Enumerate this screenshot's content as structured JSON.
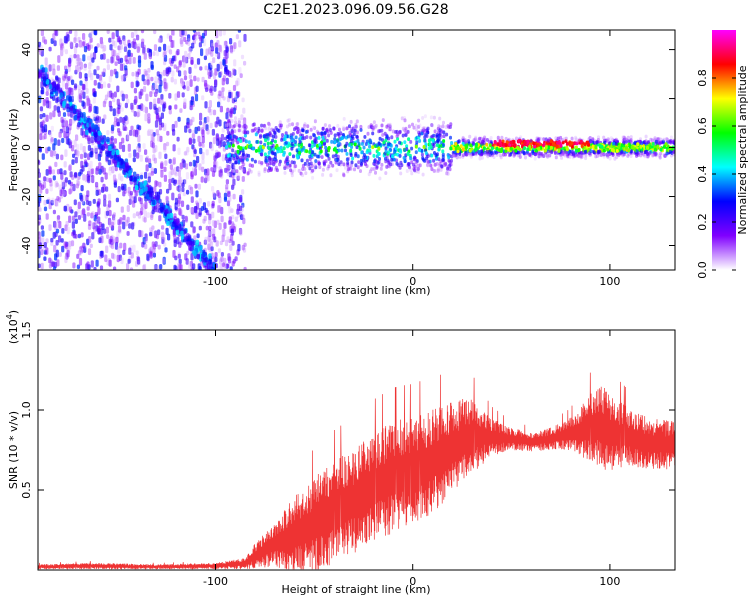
{
  "chart_data": [
    {
      "type": "heatmap",
      "title": "C2E1.2023.096.09.56.G28",
      "xlabel": "Height of straight line (km)",
      "ylabel": "Frequency (Hz)",
      "xlim": [
        -190,
        133
      ],
      "ylim": [
        -50,
        48
      ],
      "x_ticks": [
        -100,
        0,
        100
      ],
      "y_ticks": [
        -40,
        -20,
        0,
        20,
        40
      ],
      "colorbar": {
        "label": "Normalized spectral amplitude",
        "range": [
          0,
          1
        ],
        "ticks": [
          0.0,
          0.2,
          0.4,
          0.6,
          0.8
        ],
        "colormap": [
          "#ffffff",
          "#8000ff",
          "#0000ff",
          "#00ffff",
          "#00ff00",
          "#ffff00",
          "#ff0000",
          "#ff00ff"
        ]
      },
      "features": {
        "diagonal_track": {
          "start": [
            -190,
            32
          ],
          "end": [
            -100,
            -50
          ],
          "amplitude": 0.3
        },
        "central_band": {
          "x_range": [
            -95,
            133
          ],
          "frequency": 0,
          "peak_segment_x": [
            40,
            90
          ],
          "peak_amplitude": 0.95
        },
        "noise_region_x": [
          -190,
          -85
        ]
      }
    },
    {
      "type": "line",
      "xlabel": "Height of straight line (km)",
      "ylabel": "SNR (10 * v/v)",
      "y_multiplier": "(x10",
      "y_multiplier_exp": "4",
      "xlim": [
        -190,
        133
      ],
      "ylim": [
        0,
        15000
      ],
      "x_ticks": [
        -100,
        0,
        100
      ],
      "y_ticks": [
        5000,
        10000,
        15000
      ],
      "y_tick_labels": [
        "0.5",
        "1.0",
        "1.5"
      ],
      "color": "#ee3333",
      "series": [
        {
          "x": [
            -190,
            -160,
            -130,
            -100,
            -85,
            -80,
            -70,
            -60,
            -50,
            -40,
            -30,
            -20,
            -10,
            0,
            10,
            20,
            30,
            40,
            50,
            60,
            70,
            80,
            90,
            95,
            100,
            110,
            120,
            133
          ],
          "mean": [
            200,
            250,
            200,
            250,
            400,
            900,
            1600,
            2200,
            2800,
            3600,
            4300,
            5200,
            5800,
            6200,
            6800,
            7600,
            8400,
            8300,
            8200,
            8000,
            8200,
            8500,
            8800,
            9000,
            8600,
            8300,
            7900,
            7800
          ],
          "amplitude": [
            150,
            200,
            150,
            200,
            350,
            800,
            1400,
            2400,
            3000,
            3200,
            3300,
            3400,
            3500,
            3400,
            3300,
            3000,
            2400,
            1200,
            700,
            600,
            700,
            1000,
            2200,
            2800,
            2400,
            1800,
            1600,
            1500
          ]
        }
      ]
    }
  ]
}
